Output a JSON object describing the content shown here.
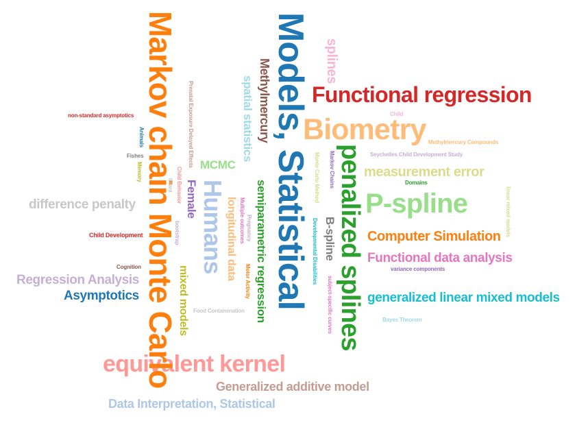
{
  "words": [
    {
      "text": "Models, Statistical",
      "color": "#1f77b4"
    },
    {
      "text": "Markov chain Monte Carlo",
      "color": "#ff7f0e"
    },
    {
      "text": "Functional regression",
      "color": "#d62728"
    },
    {
      "text": "Biometry",
      "color": "#ffbb78"
    },
    {
      "text": "penalized splines",
      "color": "#2ca02c"
    },
    {
      "text": "P-spline",
      "color": "#98df8a"
    },
    {
      "text": "Humans",
      "color": "#aec7e8"
    },
    {
      "text": "equivalent kernel",
      "color": "#ff9896"
    },
    {
      "text": "splines",
      "color": "#f7b6d2"
    },
    {
      "text": "Methylmercury",
      "color": "#8c564b"
    },
    {
      "text": "spatial statistics",
      "color": "#9edae5"
    },
    {
      "text": "semiparametric regression",
      "color": "#2ca02c"
    },
    {
      "text": "longitudinal data",
      "color": "#ffbb78"
    },
    {
      "text": "Female",
      "color": "#9467bd"
    },
    {
      "text": "MCMC",
      "color": "#98df8a"
    },
    {
      "text": "mixed models",
      "color": "#bcbd22"
    },
    {
      "text": "B-spline",
      "color": "#7f7f7f"
    },
    {
      "text": "measurement error",
      "color": "#dbdb8d"
    },
    {
      "text": "Computer Simulation",
      "color": "#ff7f0e"
    },
    {
      "text": "Functional data analysis",
      "color": "#e377c2"
    },
    {
      "text": "generalized linear mixed models",
      "color": "#17becf"
    },
    {
      "text": "difference penalty",
      "color": "#c7c7c7"
    },
    {
      "text": "Regression Analysis",
      "color": "#c5b0d5"
    },
    {
      "text": "Asymptotics",
      "color": "#1f77b4"
    },
    {
      "text": "Generalized additive model",
      "color": "#c49c94"
    },
    {
      "text": "Data Interpretation, Statistical",
      "color": "#aec7e8"
    },
    {
      "text": "Child Development",
      "color": "#d62728"
    },
    {
      "text": "non-standard asymptotics",
      "color": "#d62728"
    },
    {
      "text": "Cognition",
      "color": "#8c564b"
    },
    {
      "text": "Food Contamination",
      "color": "#c7c7c7"
    },
    {
      "text": "Child",
      "color": "#f7b6d2"
    },
    {
      "text": "Methylmercury Compounds",
      "color": "#ffbb78"
    },
    {
      "text": "Seychelles Child Development Study",
      "color": "#c5b0d5"
    },
    {
      "text": "Domains",
      "color": "#2ca02c"
    },
    {
      "text": "variance components",
      "color": "#9467bd"
    },
    {
      "text": "Bayes Theorem",
      "color": "#9edae5"
    },
    {
      "text": "linear mixed models",
      "color": "#dbdb8d"
    },
    {
      "text": "Markov Chains",
      "color": "#9467bd"
    },
    {
      "text": "Monte Carlo Method",
      "color": "#dbdb8d"
    },
    {
      "text": "Developmental Disabilities",
      "color": "#17becf"
    },
    {
      "text": "subject-specific curves",
      "color": "#e377c2"
    },
    {
      "text": "Prenatal Exposure Delayed Effects",
      "color": "#c49c94"
    },
    {
      "text": "Animals",
      "color": "#1f77b4"
    },
    {
      "text": "Fishes",
      "color": "#7f7f7f"
    },
    {
      "text": "Memory",
      "color": "#bcbd22"
    },
    {
      "text": "Child Behavior",
      "color": "#ff9896"
    },
    {
      "text": "Infant",
      "color": "#c7c7c7"
    },
    {
      "text": "bootstrap",
      "color": "#c5b0d5"
    },
    {
      "text": "Multiple outcomes",
      "color": "#e377c2"
    },
    {
      "text": "Pregnancy",
      "color": "#c5b0d5"
    },
    {
      "text": "Motor Activity",
      "color": "#ff7f0e"
    }
  ]
}
